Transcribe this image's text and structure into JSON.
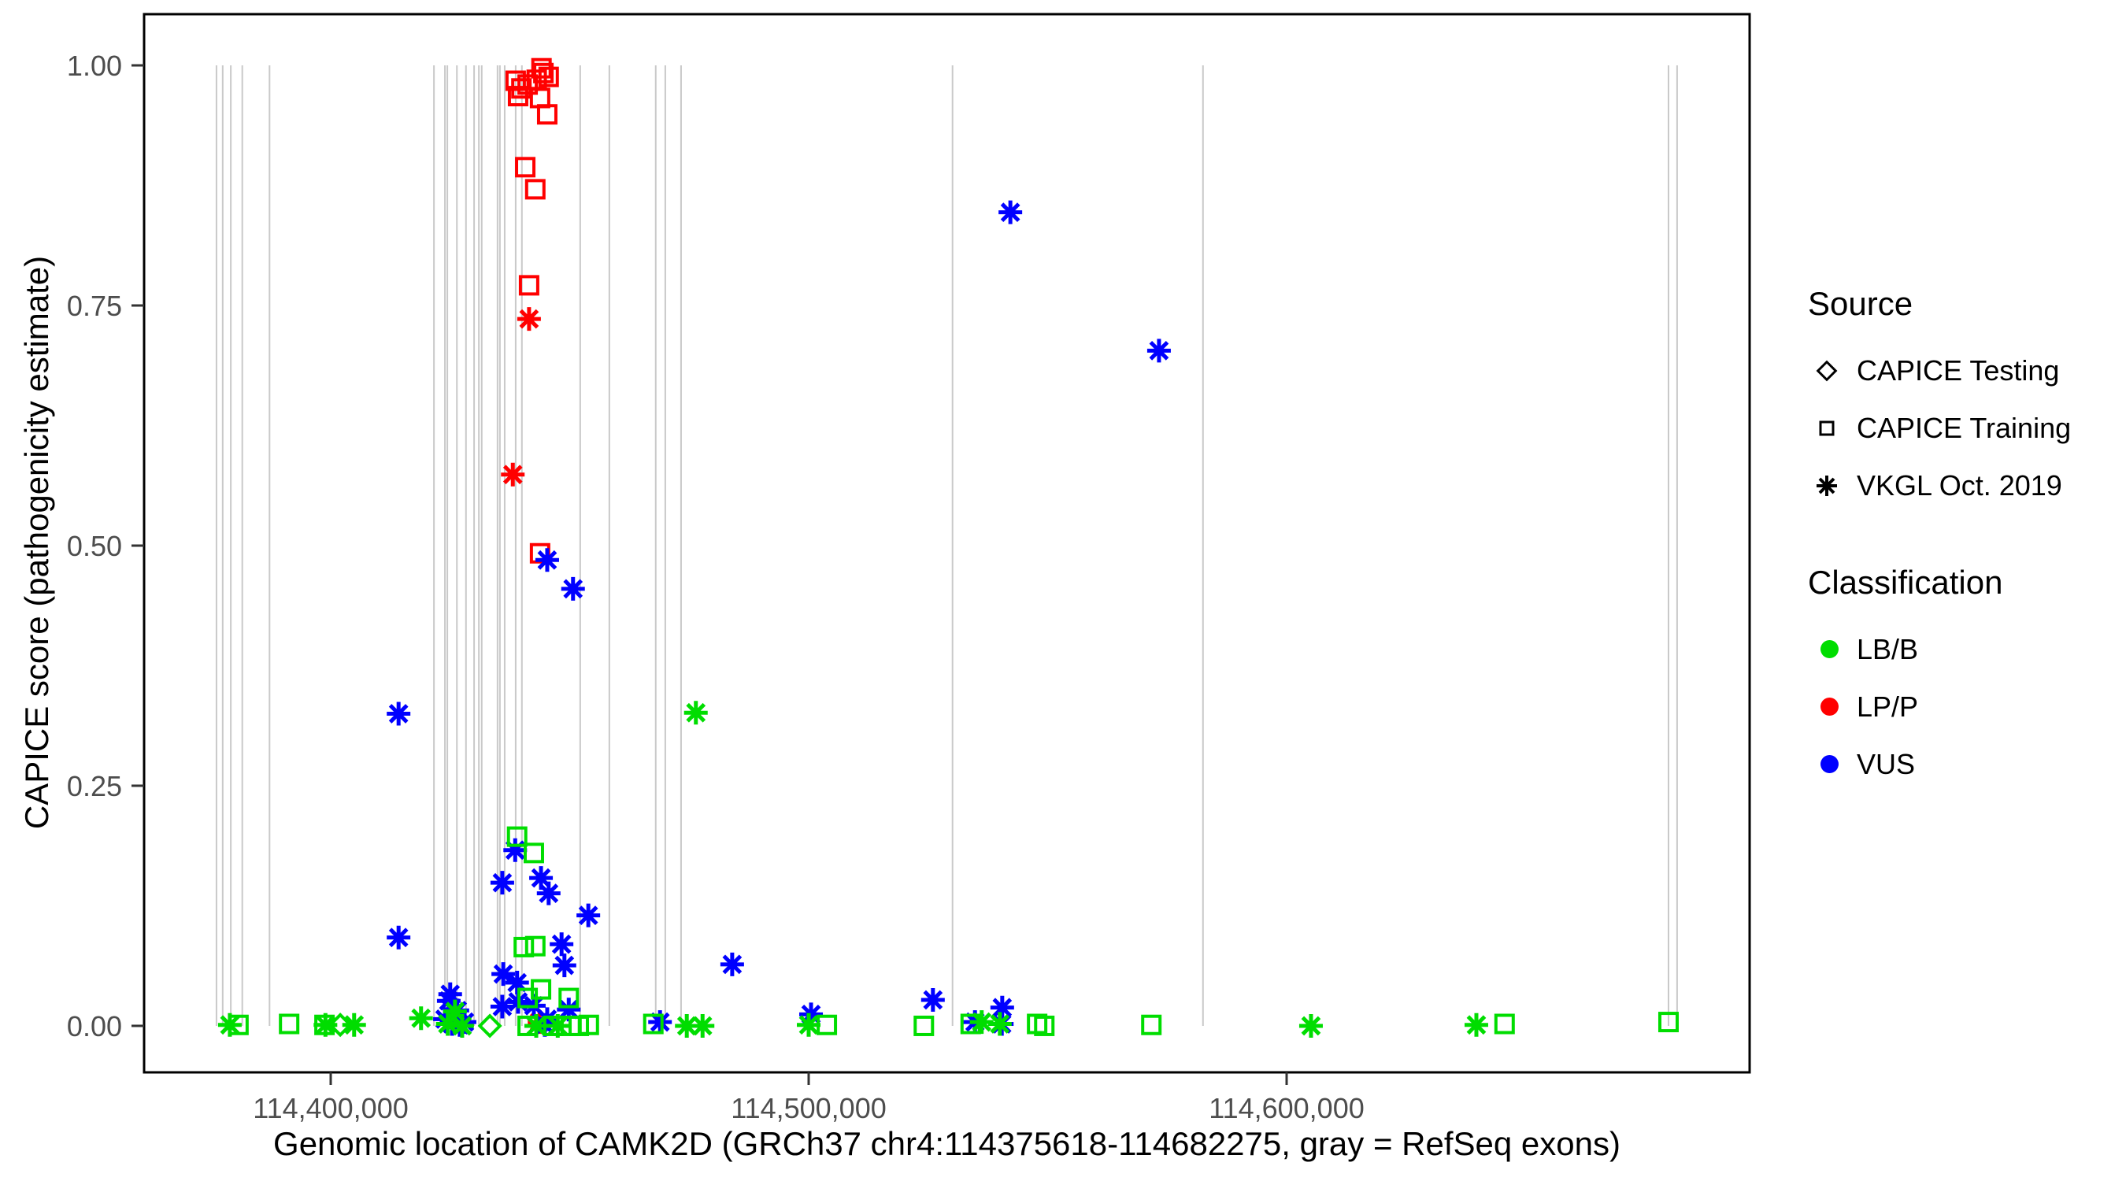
{
  "colors": {
    "lbb_green": "#00dd00",
    "lpp_red": "#ff0000",
    "vus_blue": "#0000ff",
    "exon_gray": "#c9c9c9",
    "tick_label_gray": "#4d4d4d",
    "panel_border": "#000000"
  },
  "legend": {
    "source": {
      "title": "Source",
      "items": [
        {
          "label": "CAPICE Testing",
          "marker": "diamond"
        },
        {
          "label": "CAPICE Training",
          "marker": "square"
        },
        {
          "label": "VKGL Oct. 2019",
          "marker": "asterisk"
        }
      ]
    },
    "classification": {
      "title": "Classification",
      "items": [
        {
          "label": "LB/B",
          "color": "#00dd00"
        },
        {
          "label": "LP/P",
          "color": "#ff0000"
        },
        {
          "label": "VUS",
          "color": "#0000ff"
        }
      ]
    }
  },
  "chart_data": {
    "type": "scatter",
    "title": "",
    "xlabel": "Genomic location of CAMK2D (GRCh37 chr4:114375618-114682275, gray = RefSeq exons)",
    "ylabel": "CAPICE score (pathogenicity estimate)",
    "x_ticks": [
      {
        "value": 114400000,
        "label": "114,400,000"
      },
      {
        "value": 114500000,
        "label": "114,500,000"
      },
      {
        "value": 114600000,
        "label": "114,600,000"
      }
    ],
    "y_ticks": [
      {
        "value": 0.0,
        "label": "0.00"
      },
      {
        "value": 0.25,
        "label": "0.25"
      },
      {
        "value": 0.5,
        "label": "0.50"
      },
      {
        "value": 0.75,
        "label": "0.75"
      },
      {
        "value": 1.0,
        "label": "1.00"
      }
    ],
    "x_range": [
      114360956,
      114696870
    ],
    "y_range": [
      -0.0484,
      1.0533
    ],
    "grid": "vertical gray segments mark RefSeq exons, spanning scores 0 to 1",
    "legend_position": "right",
    "exon_positions": [
      114376100,
      114377400,
      114379100,
      114381500,
      114387200,
      114421600,
      114423900,
      114424400,
      114426400,
      114428300,
      114430000,
      114431000,
      114431600,
      114434900,
      114435400,
      114436400,
      114438700,
      114440000,
      114452200,
      114458300,
      114468000,
      114470000,
      114473300,
      114530100,
      114582500,
      114679900,
      114681700
    ],
    "marker_by_source": {
      "testing": "diamond",
      "training": "square",
      "vkgl": "asterisk"
    },
    "color_by_class": {
      "LB/B": "#00dd00",
      "LP/P": "#ff0000",
      "VUS": "#0000ff"
    },
    "points_format": [
      "genomic_position",
      "capice_score",
      "source",
      "classification"
    ],
    "points": [
      [
        114438700,
        0.984,
        "training",
        "LP/P"
      ],
      [
        114439900,
        0.976,
        "training",
        "LP/P"
      ],
      [
        114441200,
        0.98,
        "training",
        "LP/P"
      ],
      [
        114439200,
        0.968,
        "training",
        "LP/P"
      ],
      [
        114443800,
        0.966,
        "training",
        "LP/P"
      ],
      [
        114445300,
        0.949,
        "training",
        "LP/P"
      ],
      [
        114444500,
        0.992,
        "training",
        "LP/P"
      ],
      [
        114445600,
        0.988,
        "training",
        "LP/P"
      ],
      [
        114444100,
        0.997,
        "training",
        "LP/P"
      ],
      [
        114443100,
        0.985,
        "training",
        "LP/P"
      ],
      [
        114440700,
        0.894,
        "training",
        "LP/P"
      ],
      [
        114442800,
        0.871,
        "training",
        "LP/P"
      ],
      [
        114441500,
        0.771,
        "training",
        "LP/P"
      ],
      [
        114443800,
        0.492,
        "training",
        "LP/P"
      ],
      [
        114441500,
        0.736,
        "vkgl",
        "LP/P"
      ],
      [
        114438100,
        0.574,
        "vkgl",
        "LP/P"
      ],
      [
        114443700,
        0.004,
        "vkgl",
        "LP/P"
      ],
      [
        114542200,
        0.847,
        "vkgl",
        "VUS"
      ],
      [
        114573300,
        0.703,
        "vkgl",
        "VUS"
      ],
      [
        114445300,
        0.485,
        "vkgl",
        "VUS"
      ],
      [
        114450700,
        0.455,
        "vkgl",
        "VUS"
      ],
      [
        114414200,
        0.325,
        "vkgl",
        "VUS"
      ],
      [
        114414200,
        0.092,
        "vkgl",
        "VUS"
      ],
      [
        114438600,
        0.183,
        "vkgl",
        "VUS"
      ],
      [
        114435900,
        0.149,
        "vkgl",
        "VUS"
      ],
      [
        114444000,
        0.154,
        "vkgl",
        "VUS"
      ],
      [
        114445600,
        0.138,
        "vkgl",
        "VUS"
      ],
      [
        114453900,
        0.115,
        "vkgl",
        "VUS"
      ],
      [
        114448300,
        0.085,
        "vkgl",
        "VUS"
      ],
      [
        114448900,
        0.063,
        "vkgl",
        "VUS"
      ],
      [
        114436100,
        0.054,
        "vkgl",
        "VUS"
      ],
      [
        114439000,
        0.045,
        "vkgl",
        "VUS"
      ],
      [
        114424700,
        0.026,
        "vkgl",
        "VUS"
      ],
      [
        114426500,
        0.016,
        "vkgl",
        "VUS"
      ],
      [
        114435900,
        0.02,
        "vkgl",
        "VUS"
      ],
      [
        114439200,
        0.025,
        "vkgl",
        "VUS"
      ],
      [
        114442500,
        0.021,
        "vkgl",
        "VUS"
      ],
      [
        114449800,
        0.017,
        "vkgl",
        "VUS"
      ],
      [
        114445300,
        0.007,
        "vkgl",
        "VUS"
      ],
      [
        114484000,
        0.064,
        "vkgl",
        "VUS"
      ],
      [
        114500500,
        0.012,
        "vkgl",
        "VUS"
      ],
      [
        114526000,
        0.027,
        "vkgl",
        "VUS"
      ],
      [
        114540500,
        0.019,
        "vkgl",
        "VUS"
      ],
      [
        114534800,
        0.004,
        "vkgl",
        "VUS"
      ],
      [
        114540400,
        0.002,
        "vkgl",
        "VUS"
      ],
      [
        114468900,
        0.004,
        "vkgl",
        "VUS"
      ],
      [
        114423900,
        0.007,
        "vkgl",
        "VUS"
      ],
      [
        114425400,
        0.002,
        "vkgl",
        "VUS"
      ],
      [
        114427000,
        0.001,
        "vkgl",
        "VUS"
      ],
      [
        114428000,
        0.004,
        "vkgl",
        "VUS"
      ],
      [
        114425000,
        0.033,
        "vkgl",
        "VUS"
      ],
      [
        114444800,
        0.001,
        "vkgl",
        "VUS"
      ],
      [
        114439000,
        0.197,
        "training",
        "LB/B"
      ],
      [
        114442500,
        0.18,
        "training",
        "LB/B"
      ],
      [
        114440400,
        0.082,
        "training",
        "LB/B"
      ],
      [
        114442800,
        0.083,
        "training",
        "LB/B"
      ],
      [
        114444000,
        0.038,
        "training",
        "LB/B"
      ],
      [
        114441200,
        0.029,
        "training",
        "LB/B"
      ],
      [
        114449800,
        0.029,
        "training",
        "LB/B"
      ],
      [
        114380700,
        0.001,
        "training",
        "LB/B"
      ],
      [
        114391300,
        0.002,
        "training",
        "LB/B"
      ],
      [
        114398700,
        0.001,
        "training",
        "LB/B"
      ],
      [
        114441200,
        0.0,
        "training",
        "LB/B"
      ],
      [
        114446600,
        0.0,
        "training",
        "LB/B"
      ],
      [
        114450200,
        0.0,
        "training",
        "LB/B"
      ],
      [
        114451900,
        0.0,
        "training",
        "LB/B"
      ],
      [
        114454000,
        0.001,
        "training",
        "LB/B"
      ],
      [
        114467500,
        0.002,
        "training",
        "LB/B"
      ],
      [
        114503800,
        0.001,
        "training",
        "LB/B"
      ],
      [
        114524100,
        0.0,
        "training",
        "LB/B"
      ],
      [
        114533900,
        0.002,
        "training",
        "LB/B"
      ],
      [
        114547800,
        0.002,
        "training",
        "LB/B"
      ],
      [
        114549300,
        0.0,
        "training",
        "LB/B"
      ],
      [
        114571700,
        0.001,
        "training",
        "LB/B"
      ],
      [
        114645600,
        0.002,
        "training",
        "LB/B"
      ],
      [
        114679900,
        0.004,
        "training",
        "LB/B"
      ],
      [
        114402000,
        0.001,
        "testing",
        "LB/B"
      ],
      [
        114433300,
        0.0,
        "testing",
        "LB/B"
      ],
      [
        114476400,
        0.326,
        "vkgl",
        "LB/B"
      ],
      [
        114378900,
        0.001,
        "vkgl",
        "LB/B"
      ],
      [
        114404900,
        0.001,
        "vkgl",
        "LB/B"
      ],
      [
        114418900,
        0.008,
        "vkgl",
        "LB/B"
      ],
      [
        114426000,
        0.015,
        "vkgl",
        "LB/B"
      ],
      [
        114474500,
        0.0,
        "vkgl",
        "LB/B"
      ],
      [
        114477800,
        0.0,
        "vkgl",
        "LB/B"
      ],
      [
        114500000,
        0.001,
        "vkgl",
        "LB/B"
      ],
      [
        114536200,
        0.004,
        "vkgl",
        "LB/B"
      ],
      [
        114540000,
        0.002,
        "vkgl",
        "LB/B"
      ],
      [
        114605100,
        0.0,
        "vkgl",
        "LB/B"
      ],
      [
        114639700,
        0.001,
        "vkgl",
        "LB/B"
      ],
      [
        114398900,
        0.001,
        "vkgl",
        "LB/B"
      ],
      [
        114424500,
        0.002,
        "vkgl",
        "LB/B"
      ],
      [
        114427500,
        0.0,
        "vkgl",
        "LB/B"
      ],
      [
        114443000,
        0.0,
        "vkgl",
        "LB/B"
      ],
      [
        114447500,
        0.0,
        "vkgl",
        "LB/B"
      ]
    ]
  }
}
